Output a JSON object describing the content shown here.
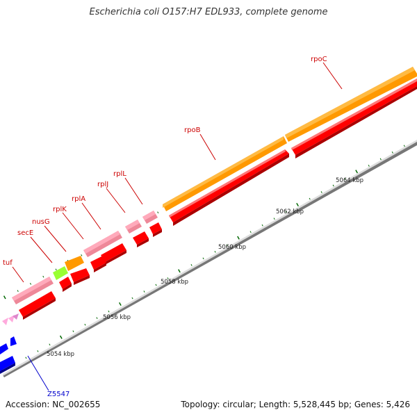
{
  "header": {
    "title": "Escherichia coli O157:H7 EDL933, complete genome"
  },
  "footer": {
    "accession": "Accession: NC_002655",
    "summary": "Topology: circular; Length: 5,528,445 bp; Genes: 5,426"
  },
  "colors": {
    "cds_forward_red": "#ff0000",
    "rrna_orange": "#ff9900",
    "trna_light_green": "#99ff33",
    "pink_gene": "#ee8899",
    "small_pink_arrows": "#ffaadd",
    "blue_gene": "#0000ff",
    "gene_label_red": "#cc0000",
    "gene_label_blue": "#0000cc",
    "tick_green": "#006600",
    "backbone_gray": "#888888"
  },
  "chart_data": {
    "type": "genome-map",
    "scale_unit": "kbp",
    "scale_labels": [
      {
        "kbp": 5054,
        "label": "5054 kbp"
      },
      {
        "kbp": 5056,
        "label": "5056 kbp"
      },
      {
        "kbp": 5058,
        "label": "5058 kbp"
      },
      {
        "kbp": 5060,
        "label": "5060 kbp"
      },
      {
        "kbp": 5062,
        "label": "5062 kbp"
      },
      {
        "kbp": 5064,
        "label": "5064 kbp"
      }
    ],
    "genes": [
      {
        "name": "Z5547",
        "color": "blue"
      },
      {
        "name": "tuf",
        "color": "pink"
      },
      {
        "name": "secE",
        "color": "light-green"
      },
      {
        "name": "nusG",
        "color": "orange"
      },
      {
        "name": "rplK",
        "color": "red"
      },
      {
        "name": "rplA",
        "color": "pink"
      },
      {
        "name": "rplJ",
        "color": "pink"
      },
      {
        "name": "rplL",
        "color": "pink"
      },
      {
        "name": "rpoB",
        "color": "orange"
      },
      {
        "name": "rpoC",
        "color": "orange"
      }
    ]
  }
}
